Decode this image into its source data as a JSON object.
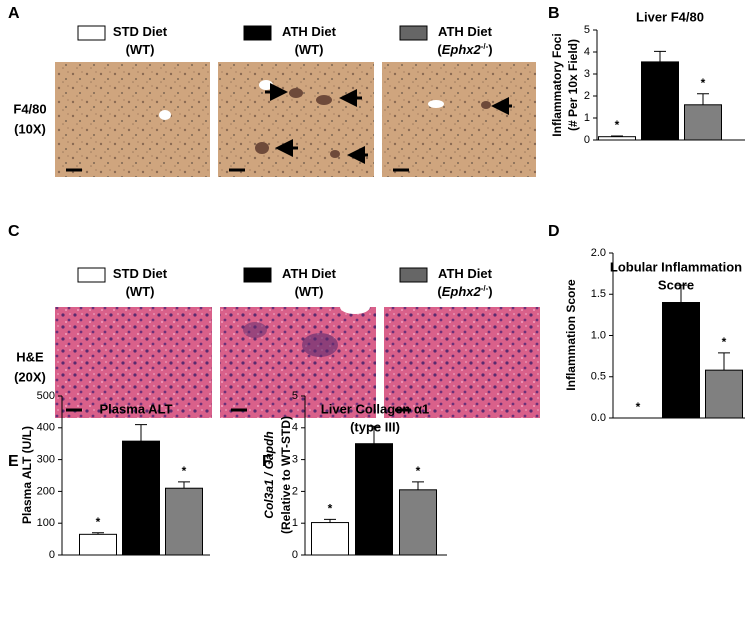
{
  "panels": [
    {
      "letter": "A",
      "row_label": [
        "F4/80",
        "(10X)"
      ],
      "legend": [
        {
          "lines": [
            [
              "STD Diet"
            ],
            [
              "(WT)"
            ]
          ]
        },
        {
          "lines": [
            [
              "ATH Diet"
            ],
            [
              "(WT)"
            ]
          ]
        },
        {
          "lines": [
            [
              "ATH Diet"
            ],
            [
              "(",
              "Ephx2",
              "-/-",
              ")"
            ]
          ]
        }
      ]
    },
    {
      "letter": "C",
      "row_label": [
        "H&E",
        "(20X)"
      ],
      "legend": [
        {
          "lines": [
            [
              "STD Diet"
            ],
            [
              "(WT)"
            ]
          ]
        },
        {
          "lines": [
            [
              "ATH Diet"
            ],
            [
              "(WT)"
            ]
          ]
        },
        {
          "lines": [
            [
              "ATH Diet"
            ],
            [
              "(",
              "Ephx2",
              "-/-",
              ")"
            ]
          ]
        }
      ]
    }
  ],
  "chart_data": [
    {
      "letter": "B",
      "type": "bar",
      "title": [
        "Liver F4/80"
      ],
      "ylabel": [
        "Inflammatory Foci",
        "(# Per 10x Field)"
      ],
      "categories": [
        null,
        null,
        null
      ],
      "values": [
        0.15,
        3.55,
        1.6
      ],
      "errors": [
        0.03,
        0.48,
        0.5
      ],
      "colors": [
        "#ffffff",
        "#000000",
        "#808080"
      ],
      "annotations": [
        "*",
        null,
        "*"
      ],
      "ylim": [
        0,
        5
      ],
      "yticks": [
        0,
        1,
        2,
        3,
        4,
        5
      ]
    },
    {
      "letter": "D",
      "type": "bar",
      "title": [
        "Lobular Inflammation",
        "Score"
      ],
      "ylabel": [
        "Inflammation Score"
      ],
      "categories": [
        null,
        null,
        null
      ],
      "values": [
        0,
        1.4,
        0.58
      ],
      "errors": [
        0,
        0.21,
        0.21
      ],
      "colors": [
        "#ffffff",
        "#000000",
        "#808080"
      ],
      "annotations": [
        "*",
        null,
        "*"
      ],
      "ylim": [
        0,
        2
      ],
      "yticks": [
        {
          "value": 0,
          "label": "0.0"
        },
        {
          "value": 0.5,
          "label": "0.5"
        },
        {
          "value": 1,
          "label": "1.0"
        },
        {
          "value": 1.5,
          "label": "1.5"
        },
        {
          "value": 2,
          "label": "2.0"
        }
      ]
    },
    {
      "letter": "E",
      "type": "bar",
      "title": [
        "Plasma ALT"
      ],
      "ylabel": [
        "Plasma ALT (U/L)"
      ],
      "categories": [
        null,
        null,
        null
      ],
      "values": [
        65,
        358,
        210
      ],
      "errors": [
        5,
        52,
        20
      ],
      "colors": [
        "#ffffff",
        "#000000",
        "#808080"
      ],
      "annotations": [
        "*",
        null,
        "*"
      ],
      "ylim": [
        0,
        500
      ],
      "yticks": [
        0,
        100,
        200,
        300,
        400,
        500
      ]
    },
    {
      "letter": "F",
      "type": "bar",
      "title": [
        "Liver Collagen α1",
        "(type III)"
      ],
      "ylabel": [
        "Col3a1 / Gapdh",
        "(Relative to WT-STD)"
      ],
      "categories": [
        null,
        null,
        null
      ],
      "values": [
        1.02,
        3.5,
        2.05
      ],
      "errors": [
        0.1,
        0.55,
        0.25
      ],
      "colors": [
        "#ffffff",
        "#000000",
        "#808080"
      ],
      "annotations": [
        "*",
        null,
        "*"
      ],
      "ylim": [
        0,
        5
      ],
      "yticks": [
        0,
        1,
        2,
        3,
        4,
        5
      ]
    }
  ]
}
